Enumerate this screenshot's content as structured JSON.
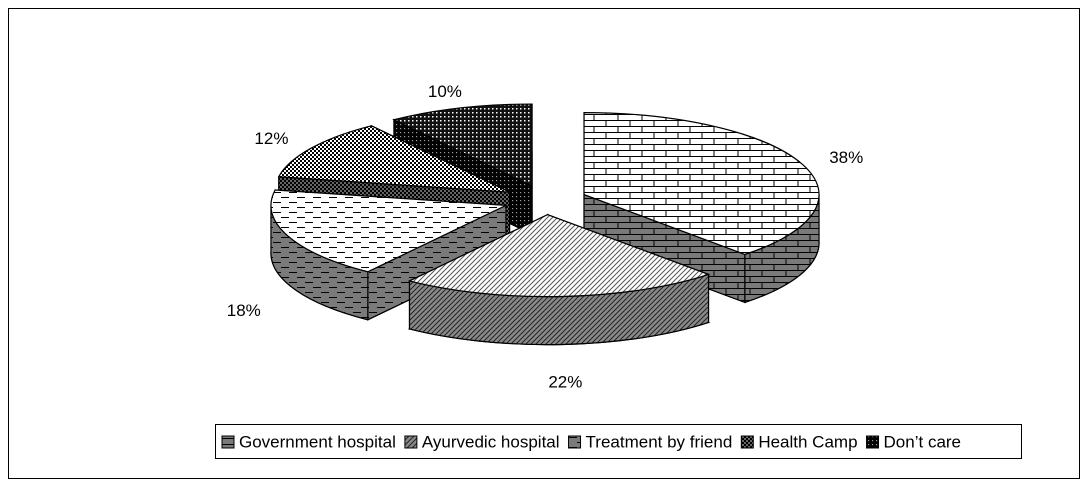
{
  "chart_data": {
    "type": "pie",
    "categories": [
      "Government hospital",
      "Ayurvedic hospital",
      "Treatment by friend",
      "Health Camp",
      "Don’t care"
    ],
    "values": [
      38,
      22,
      18,
      12,
      10
    ],
    "value_labels": [
      "38%",
      "22%",
      "18%",
      "12%",
      "10%"
    ],
    "legend": "bottom"
  }
}
